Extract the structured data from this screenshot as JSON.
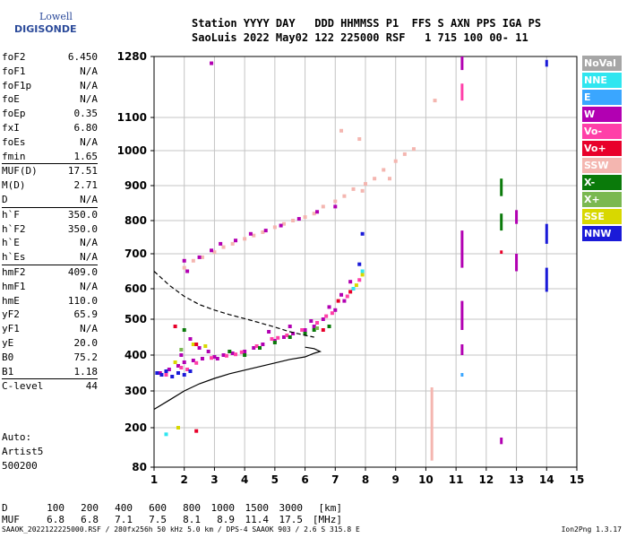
{
  "logo": {
    "line1": "Lowell",
    "line2": "DIGISONDE"
  },
  "header": {
    "row1": "Station YYYY DAY   DDD HHMMSS P1  FFS S AXN PPS IGA PS",
    "row2": "SaoLuis 2022 May02 122 225000 RSF   1 715 100 00- 11"
  },
  "params": [
    {
      "name": "foF2",
      "value": "6.450"
    },
    {
      "name": "foF1",
      "value": "N/A"
    },
    {
      "name": "foF1p",
      "value": "N/A"
    },
    {
      "name": "foE",
      "value": "N/A"
    },
    {
      "name": "foEp",
      "value": "0.35"
    },
    {
      "name": "fxI",
      "value": "6.80"
    },
    {
      "name": "foEs",
      "value": "N/A"
    },
    {
      "name": "fmin",
      "value": "1.65"
    },
    {
      "name": "MUF(D)",
      "value": "17.51",
      "sep": true
    },
    {
      "name": "M(D)",
      "value": "2.71"
    },
    {
      "name": "D",
      "value": "N/A"
    },
    {
      "name": "h`F",
      "value": "350.0",
      "sep": true
    },
    {
      "name": "h`F2",
      "value": "350.0"
    },
    {
      "name": "h`E",
      "value": "N/A"
    },
    {
      "name": "h`Es",
      "value": "N/A"
    },
    {
      "name": "hmF2",
      "value": "409.0",
      "sep": true
    },
    {
      "name": "hmF1",
      "value": "N/A"
    },
    {
      "name": "hmE",
      "value": "110.0"
    },
    {
      "name": "yF2",
      "value": "65.9"
    },
    {
      "name": "yF1",
      "value": "N/A"
    },
    {
      "name": "yE",
      "value": "20.0"
    },
    {
      "name": "B0",
      "value": "75.2"
    },
    {
      "name": "B1",
      "value": "1.18"
    },
    {
      "name": "C-level",
      "value": "44",
      "sep": true
    }
  ],
  "auto": {
    "label": "Auto:",
    "artist": "Artist5",
    "version": "500200"
  },
  "legend": [
    {
      "label": "NoVal",
      "color": "#a6a6a6"
    },
    {
      "label": "NNE",
      "color": "#2fe6f0"
    },
    {
      "label": "E",
      "color": "#3aa6ff"
    },
    {
      "label": "W",
      "color": "#b200b2"
    },
    {
      "label": "Vo-",
      "color": "#ff3fa8"
    },
    {
      "label": "Vo+",
      "color": "#e8002a"
    },
    {
      "label": "SSW",
      "color": "#f4b6b0"
    },
    {
      "label": "X-",
      "color": "#0a7a0a"
    },
    {
      "label": "X+",
      "color": "#7ab850"
    },
    {
      "label": "SSE",
      "color": "#d8d800"
    },
    {
      "label": "NNW",
      "color": "#1a1ad8"
    }
  ],
  "dtable": {
    "d_label": "D",
    "d_values": [
      "100",
      "200",
      "400",
      "600",
      "800",
      "1000",
      "1500",
      "3000",
      "[km]"
    ],
    "muf_label": "MUF",
    "muf_values": [
      "6.8",
      "6.8",
      "7.1",
      "7.5",
      "8.1",
      "8.9",
      "11.4",
      "17.5",
      "[MHz]"
    ]
  },
  "footer": "SAAOK_2022122225000.RSF / 280fx256h 50 kHz 5.0 km / DPS-4 SAAOK 903 / 2.6 S 315.8 E",
  "version_tag": "Ion2Png 1.3.17",
  "chart_data": {
    "type": "scatter",
    "title": "",
    "xlabel": "",
    "ylabel": "",
    "xlim": [
      1,
      15
    ],
    "ylim": [
      80,
      1280
    ],
    "x_ticks": [
      "1",
      "2",
      "3",
      "4",
      "5",
      "6",
      "7",
      "8",
      "9",
      "10",
      "11",
      "12",
      "13",
      "14",
      "15"
    ],
    "y_ticks": [
      "80",
      "200",
      "300",
      "400",
      "500",
      "600",
      "700",
      "800",
      "900",
      "1000",
      "1100",
      "1280"
    ],
    "grid": true,
    "series": [
      {
        "kind": "points",
        "color": "#b200b2",
        "points": [
          [
            1.2,
            350
          ],
          [
            1.5,
            360
          ],
          [
            1.8,
            370
          ],
          [
            2.0,
            380
          ],
          [
            2.3,
            385
          ],
          [
            2.6,
            390
          ],
          [
            3.0,
            395
          ],
          [
            3.3,
            400
          ],
          [
            3.6,
            405
          ],
          [
            4.0,
            410
          ],
          [
            4.3,
            420
          ],
          [
            4.6,
            430
          ],
          [
            5.0,
            440
          ],
          [
            5.3,
            450
          ],
          [
            5.6,
            460
          ],
          [
            6.0,
            470
          ],
          [
            6.3,
            480
          ],
          [
            6.6,
            500
          ],
          [
            7.0,
            530
          ],
          [
            7.3,
            560
          ],
          [
            7.6,
            600
          ],
          [
            1.9,
            400
          ],
          [
            2.5,
            420
          ],
          [
            3.1,
            390
          ],
          [
            4.8,
            465
          ],
          [
            5.5,
            480
          ],
          [
            6.2,
            495
          ],
          [
            6.8,
            540
          ],
          [
            7.2,
            580
          ],
          [
            7.5,
            620
          ],
          [
            2.2,
            445
          ],
          [
            2.8,
            410
          ]
        ]
      },
      {
        "kind": "points",
        "color": "#ff3fa8",
        "points": [
          [
            1.4,
            345
          ],
          [
            1.9,
            365
          ],
          [
            2.4,
            378
          ],
          [
            2.9,
            392
          ],
          [
            3.4,
            398
          ],
          [
            3.9,
            408
          ],
          [
            4.4,
            425
          ],
          [
            4.9,
            445
          ],
          [
            5.4,
            455
          ],
          [
            5.9,
            470
          ],
          [
            6.4,
            490
          ],
          [
            6.9,
            520
          ],
          [
            7.4,
            575
          ],
          [
            7.8,
            625
          ],
          [
            2.1,
            360
          ],
          [
            3.7,
            402
          ],
          [
            5.1,
            448
          ],
          [
            6.7,
            510
          ]
        ]
      },
      {
        "kind": "points",
        "color": "#1a1ad8",
        "points": [
          [
            1.1,
            350
          ],
          [
            1.25,
            345
          ],
          [
            1.4,
            355
          ],
          [
            1.6,
            340
          ],
          [
            1.8,
            350
          ],
          [
            2.0,
            345
          ],
          [
            2.2,
            355
          ],
          [
            7.8,
            670
          ],
          [
            7.9,
            760
          ]
        ]
      },
      {
        "kind": "points",
        "color": "#0a7a0a",
        "points": [
          [
            4.0,
            400
          ],
          [
            4.5,
            420
          ],
          [
            5.0,
            435
          ],
          [
            5.5,
            450
          ],
          [
            6.0,
            460
          ],
          [
            6.3,
            470
          ],
          [
            2.0,
            470
          ],
          [
            3.5,
            410
          ],
          [
            6.8,
            480
          ]
        ]
      },
      {
        "kind": "points",
        "color": "#d8d800",
        "points": [
          [
            2.3,
            430
          ],
          [
            2.7,
            425
          ],
          [
            1.7,
            380
          ],
          [
            7.7,
            610
          ],
          [
            7.9,
            640
          ],
          [
            1.8,
            200
          ]
        ]
      },
      {
        "kind": "points",
        "color": "#f4b6b0",
        "points": [
          [
            2.0,
            660
          ],
          [
            2.3,
            680
          ],
          [
            2.6,
            690
          ],
          [
            3.0,
            705
          ],
          [
            3.3,
            720
          ],
          [
            3.6,
            730
          ],
          [
            4.0,
            745
          ],
          [
            4.3,
            755
          ],
          [
            4.6,
            765
          ],
          [
            5.0,
            780
          ],
          [
            5.3,
            790
          ],
          [
            5.6,
            800
          ],
          [
            6.0,
            810
          ],
          [
            6.3,
            820
          ],
          [
            6.6,
            840
          ],
          [
            7.0,
            855
          ],
          [
            7.3,
            870
          ],
          [
            7.6,
            890
          ],
          [
            8.0,
            905
          ],
          [
            8.3,
            920
          ],
          [
            8.6,
            945
          ],
          [
            9.0,
            970
          ],
          [
            9.3,
            990
          ],
          [
            9.6,
            1005
          ],
          [
            7.8,
            1035
          ],
          [
            7.2,
            1060
          ],
          [
            10.3,
            1150
          ],
          [
            8.8,
            920
          ],
          [
            7.9,
            885
          ]
        ]
      },
      {
        "kind": "points",
        "color": "#b200b2",
        "points": [
          [
            2.1,
            650
          ],
          [
            2.5,
            690
          ],
          [
            2.9,
            710
          ],
          [
            3.2,
            730
          ],
          [
            3.7,
            740
          ],
          [
            4.2,
            760
          ],
          [
            4.7,
            770
          ],
          [
            5.2,
            785
          ],
          [
            5.8,
            805
          ],
          [
            6.4,
            825
          ],
          [
            7.0,
            840
          ],
          [
            2.9,
            1260
          ],
          [
            2.0,
            680
          ]
        ]
      },
      {
        "kind": "points",
        "color": "#2fe6f0",
        "points": [
          [
            1.4,
            180
          ],
          [
            7.9,
            650
          ],
          [
            7.6,
            600
          ]
        ]
      },
      {
        "kind": "points",
        "color": "#e8002a",
        "points": [
          [
            1.7,
            480
          ],
          [
            2.4,
            430
          ],
          [
            6.6,
            470
          ],
          [
            7.1,
            560
          ],
          [
            7.5,
            590
          ],
          [
            2.4,
            190
          ]
        ]
      },
      {
        "kind": "points",
        "color": "#7ab850",
        "points": [
          [
            1.9,
            415
          ],
          [
            6.4,
            475
          ]
        ]
      },
      {
        "kind": "vbar",
        "color": "#f4b6b0",
        "x": 10.2,
        "y1": 100,
        "y2": 310
      },
      {
        "kind": "vbar",
        "color": "#b200b2",
        "x": 11.2,
        "y1": 1240,
        "y2": 1280
      },
      {
        "kind": "vbar",
        "color": "#ff3fa8",
        "x": 11.2,
        "y1": 1150,
        "y2": 1200
      },
      {
        "kind": "vbar",
        "color": "#b200b2",
        "x": 11.2,
        "y1": 770,
        "y2": 660
      },
      {
        "kind": "vbar",
        "color": "#b200b2",
        "x": 11.2,
        "y1": 560,
        "y2": 470
      },
      {
        "kind": "vbar",
        "color": "#b200b2",
        "x": 11.2,
        "y1": 430,
        "y2": 400
      },
      {
        "kind": "vbar",
        "color": "#3aa6ff",
        "x": 11.2,
        "y1": 350,
        "y2": 340
      },
      {
        "kind": "vbar",
        "color": "#0a7a0a",
        "x": 12.5,
        "y1": 920,
        "y2": 870
      },
      {
        "kind": "vbar",
        "color": "#0a7a0a",
        "x": 12.5,
        "y1": 820,
        "y2": 770
      },
      {
        "kind": "vbar",
        "color": "#e8002a",
        "x": 12.5,
        "y1": 710,
        "y2": 700
      },
      {
        "kind": "vbar",
        "color": "#b200b2",
        "x": 12.5,
        "y1": 170,
        "y2": 150
      },
      {
        "kind": "vbar",
        "color": "#b200b2",
        "x": 13.0,
        "y1": 830,
        "y2": 790
      },
      {
        "kind": "vbar",
        "color": "#b200b2",
        "x": 13.0,
        "y1": 700,
        "y2": 650
      },
      {
        "kind": "vbar",
        "color": "#1a1ad8",
        "x": 14.0,
        "y1": 790,
        "y2": 730
      },
      {
        "kind": "vbar",
        "color": "#1a1ad8",
        "x": 14.0,
        "y1": 660,
        "y2": 590
      },
      {
        "kind": "vbar",
        "color": "#1a1ad8",
        "x": 14.0,
        "y1": 1270,
        "y2": 1250
      },
      {
        "kind": "curve",
        "color": "#000000",
        "dash": false,
        "points": [
          [
            1.0,
            250
          ],
          [
            1.5,
            275
          ],
          [
            2.0,
            300
          ],
          [
            2.5,
            320
          ],
          [
            3.0,
            335
          ],
          [
            3.5,
            348
          ],
          [
            4.0,
            358
          ],
          [
            4.5,
            368
          ],
          [
            5.0,
            378
          ],
          [
            5.5,
            388
          ],
          [
            6.0,
            395
          ],
          [
            6.3,
            405
          ],
          [
            6.5,
            410
          ],
          [
            6.3,
            418
          ],
          [
            6.0,
            422
          ]
        ]
      },
      {
        "kind": "curve",
        "color": "#000000",
        "dash": true,
        "points": [
          [
            1.0,
            650
          ],
          [
            1.5,
            610
          ],
          [
            2.0,
            575
          ],
          [
            2.5,
            548
          ],
          [
            3.0,
            530
          ],
          [
            3.5,
            515
          ],
          [
            4.0,
            502
          ],
          [
            4.5,
            490
          ],
          [
            5.0,
            478
          ],
          [
            5.5,
            465
          ],
          [
            6.0,
            455
          ],
          [
            6.3,
            450
          ]
        ]
      }
    ]
  }
}
